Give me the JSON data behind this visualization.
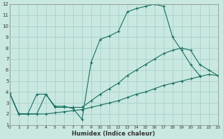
{
  "xlabel": "Humidex (Indice chaleur)",
  "background_color": "#c8e8e0",
  "grid_color": "#aacfcf",
  "line_color": "#1a6e60",
  "xlim": [
    0,
    23
  ],
  "ylim": [
    1,
    12
  ],
  "xticks": [
    0,
    1,
    2,
    3,
    4,
    5,
    6,
    7,
    8,
    9,
    10,
    11,
    12,
    13,
    14,
    15,
    16,
    17,
    18,
    19,
    20,
    21,
    22,
    23
  ],
  "yticks": [
    1,
    2,
    3,
    4,
    5,
    6,
    7,
    8,
    9,
    10,
    11,
    12
  ],
  "series": [
    {
      "x": [
        0,
        1,
        2,
        3,
        4,
        5,
        6,
        7,
        8,
        9,
        10,
        11,
        12,
        13,
        14,
        15,
        16,
        17,
        18,
        19,
        20,
        21
      ],
      "y": [
        3.9,
        2.0,
        2.0,
        3.8,
        3.8,
        2.7,
        2.7,
        2.5,
        1.5,
        6.7,
        8.8,
        9.1,
        9.5,
        11.3,
        11.6,
        11.8,
        12.0,
        11.8,
        9.0,
        7.8,
        6.5,
        5.5
      ]
    },
    {
      "x": [
        0,
        1,
        2,
        3,
        4,
        5,
        6,
        7,
        8,
        9,
        10,
        11,
        12,
        13,
        14,
        15,
        16,
        17,
        18,
        19,
        20,
        21,
        22,
        23
      ],
      "y": [
        3.9,
        2.0,
        2.0,
        2.0,
        3.8,
        2.6,
        2.6,
        2.6,
        2.6,
        3.2,
        3.8,
        4.3,
        4.8,
        5.5,
        6.0,
        6.5,
        7.0,
        7.5,
        7.8,
        8.0,
        7.8,
        6.5,
        6.0,
        5.5
      ]
    },
    {
      "x": [
        0,
        1,
        2,
        3,
        4,
        5,
        6,
        7,
        8,
        9,
        10,
        11,
        12,
        13,
        14,
        15,
        16,
        17,
        18,
        19,
        20,
        21,
        22,
        23
      ],
      "y": [
        3.9,
        2.0,
        2.0,
        2.0,
        2.0,
        2.1,
        2.2,
        2.3,
        2.4,
        2.6,
        2.8,
        3.0,
        3.2,
        3.5,
        3.8,
        4.0,
        4.3,
        4.6,
        4.8,
        5.0,
        5.2,
        5.4,
        5.6,
        5.5
      ]
    }
  ]
}
